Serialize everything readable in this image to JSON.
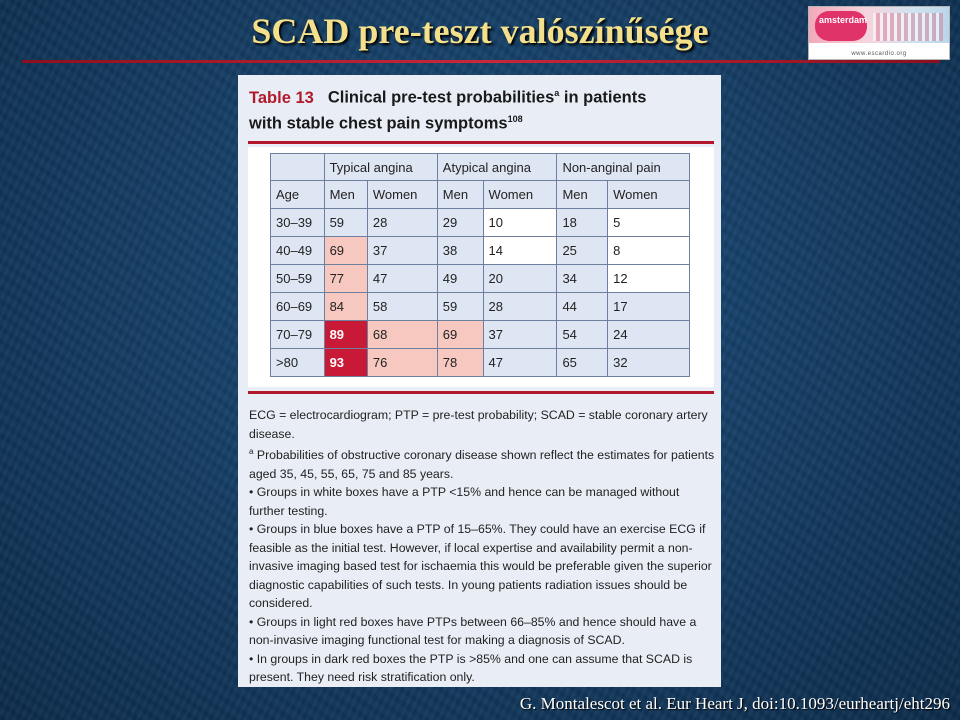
{
  "slide": {
    "title": "SCAD pre-teszt valószínűsége",
    "citation": "G. Montalescot et al.  Eur Heart J, doi:10.1093/eurheartj/eht296"
  },
  "logo": {
    "city": "amsterdam",
    "url": "www.escardio.org"
  },
  "table": {
    "number": "Table 13",
    "caption_line1": "Clinical pre-test probabilities",
    "caption_sup_a": "a",
    "caption_line1_end": " in patients",
    "caption_line2": "with stable chest pain symptoms",
    "caption_ref": "108",
    "group_headers": [
      "Typical angina",
      "Atypical angina",
      "Non-anginal pain"
    ],
    "col_headers": [
      "Age",
      "Men",
      "Women",
      "Men",
      "Women",
      "Men",
      "Women"
    ],
    "rows": [
      [
        "30–39",
        "59",
        "28",
        "29",
        "10",
        "18",
        "5"
      ],
      [
        "40–49",
        "69",
        "37",
        "38",
        "14",
        "25",
        "8"
      ],
      [
        "50–59",
        "77",
        "47",
        "49",
        "20",
        "34",
        "12"
      ],
      [
        "60–69",
        "84",
        "58",
        "59",
        "28",
        "44",
        "17"
      ],
      [
        "70–79",
        "89",
        "68",
        "69",
        "37",
        "54",
        "24"
      ],
      [
        ">80",
        "93",
        "76",
        "78",
        "47",
        "65",
        "32"
      ]
    ]
  },
  "notes": {
    "abbrev": "ECG = electrocardiogram; PTP = pre-test probability; SCAD = stable coronary artery disease.",
    "footnote_mark": "a",
    "footnote": " Probabilities of obstructive coronary disease shown reflect the estimates for patients aged 35, 45, 55, 65, 75 and 85 years.",
    "bullets": [
      "• Groups in white boxes have a PTP <15% and hence can be managed without further testing.",
      "• Groups in blue boxes have a PTP of 15–65%. They could have an exercise ECG if feasible as the initial test. However, if local expertise and availability permit a non-invasive imaging based test for ischaemia this would be preferable given the superior diagnostic capabilities of such tests. In young patients radiation issues should be considered.",
      "• Groups in light red boxes have PTPs between 66–85% and hence should have a non-invasive imaging functional test for making a diagnosis of SCAD.",
      "• In groups in dark red boxes the PTP is >85% and one can assume that SCAD is present. They need risk stratification only."
    ]
  },
  "colors": {
    "title": "#f4e08a",
    "accent_red": "#b3172b",
    "blue_box": "#dfe6f3",
    "white_box": "#ffffff",
    "light_red_box": "#f7c8c0",
    "dark_red_box": "#c81a37"
  }
}
